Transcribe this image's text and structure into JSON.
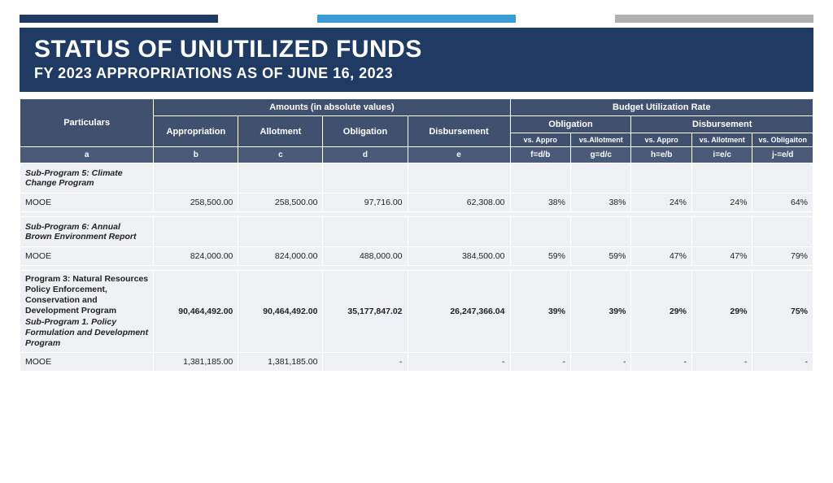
{
  "accent": {
    "bar1": "#1f3b64",
    "bar2": "#3b9bd4",
    "bar3": "#b0b0b0"
  },
  "title": {
    "main": "STATUS OF UNUTILIZED FUNDS",
    "sub": "FY 2023 APPROPRIATIONS AS OF JUNE 16, 2023"
  },
  "header": {
    "particulars": "Particulars",
    "amounts_group": "Amounts (in absolute values)",
    "bur_group": "Budget Utilization Rate",
    "appropriation": "Appropriation",
    "allotment": "Allotment",
    "obligation": "Obligation",
    "disbursement": "Disbursement",
    "oblig_group": "Obligation",
    "disb_group": "Disbursement",
    "vs_appro": "vs. Appro",
    "vs_allotment": "vs.Allotment",
    "vs_appro2": "vs. Appro",
    "vs_allotment2": "vs. Allotment",
    "vs_obligation": "vs. Obligaiton",
    "fa": "a",
    "fb": "b",
    "fc": "c",
    "fd": "d",
    "fe": "e",
    "ff": "f=d/b",
    "fg": "g=d/c",
    "fh": "h=e/b",
    "fi": "i=e/c",
    "fj": "j-=e/d"
  },
  "rows": {
    "sp5": {
      "label": "Sub-Program 5: Climate Change Program"
    },
    "sp5_mooe": {
      "label": "MOOE",
      "b": "258,500.00",
      "c": "258,500.00",
      "d": "97,716.00",
      "e": "62,308.00",
      "f": "38%",
      "g": "38%",
      "h": "24%",
      "i": "24%",
      "j": "64%"
    },
    "sp6": {
      "label": "Sub-Program 6: Annual Brown Environment Report"
    },
    "sp6_mooe": {
      "label": "MOOE",
      "b": "824,000.00",
      "c": "824,000.00",
      "d": "488,000.00",
      "e": "384,500.00",
      "f": "59%",
      "g": "59%",
      "h": "47%",
      "i": "47%",
      "j": "79%"
    },
    "p3": {
      "label_main": "Program 3: Natural Resources Policy Enforcement, Conservation and Development Program",
      "label_sub": "Sub-Program 1. Policy Formulation and Development Program",
      "b": "90,464,492.00",
      "c": "90,464,492.00",
      "d": "35,177,847.02",
      "e": "26,247,366.04",
      "f": "39%",
      "g": "39%",
      "h": "29%",
      "i": "29%",
      "j": "75%"
    },
    "p3_mooe": {
      "label": "MOOE",
      "b": "1,381,185.00",
      "c": "1,381,185.00",
      "d": "-",
      "e": "-",
      "f": "-",
      "g": "-",
      "h": "-",
      "i": "-",
      "j": "-"
    }
  }
}
